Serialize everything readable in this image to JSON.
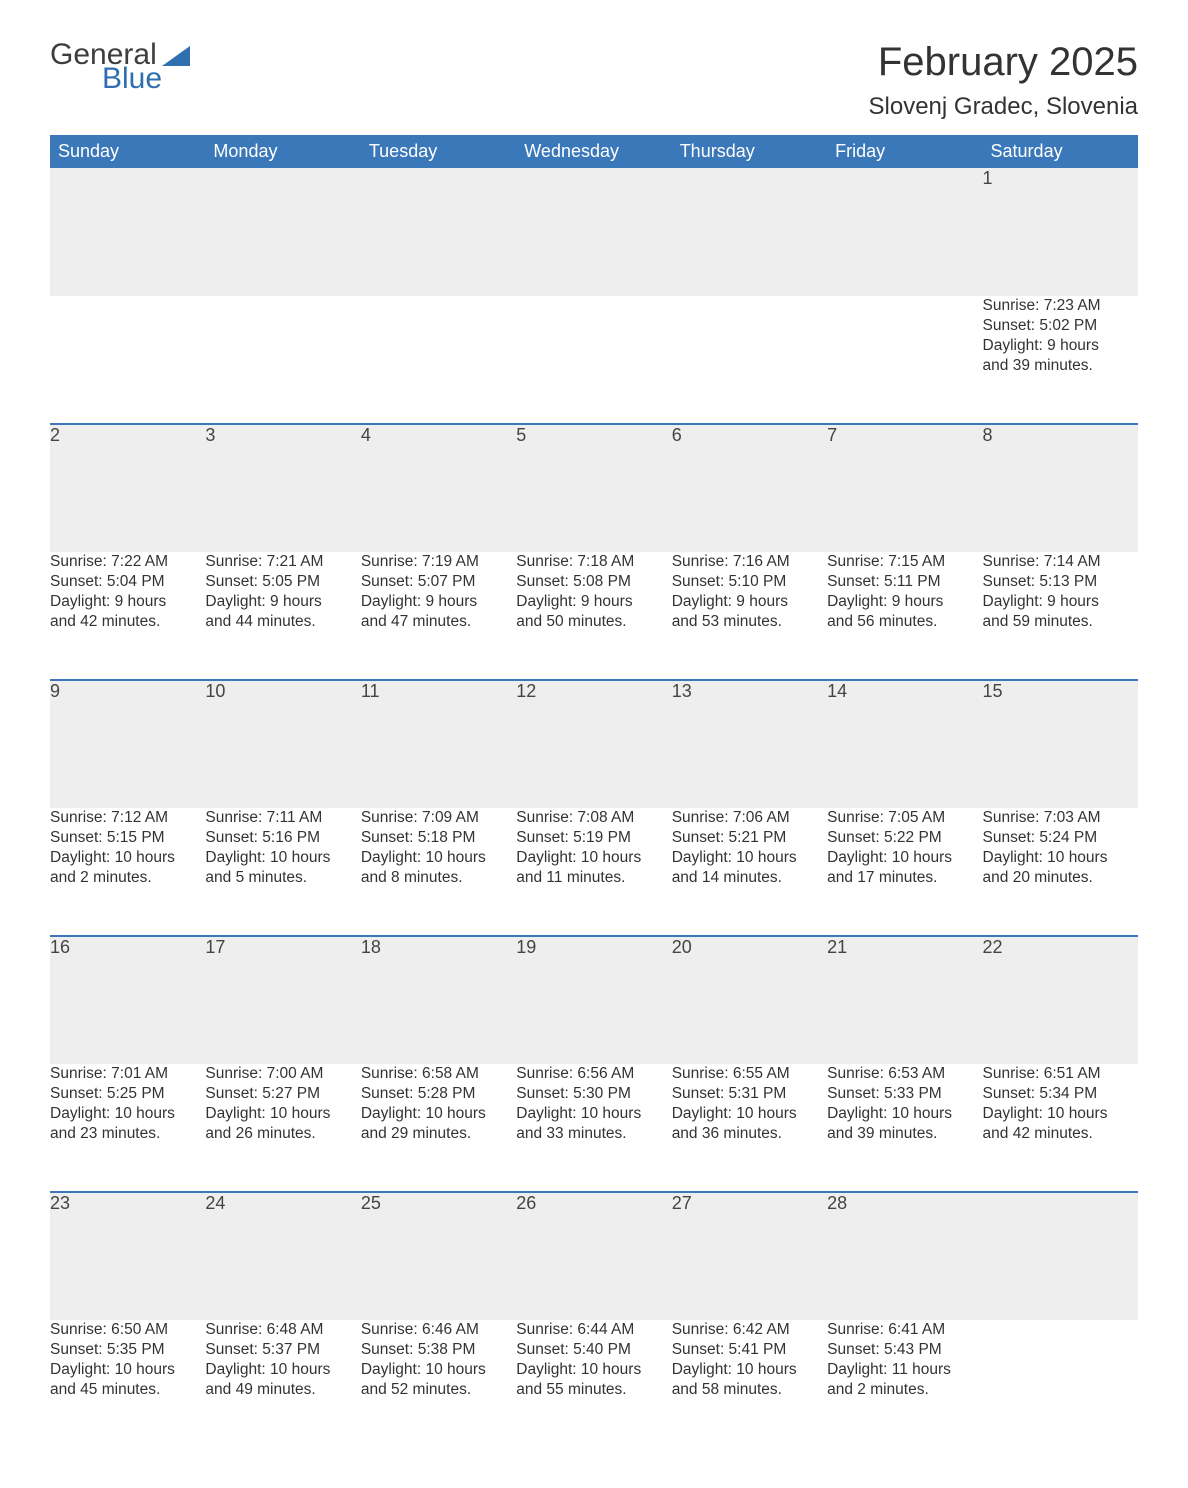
{
  "brand": {
    "word1": "General",
    "word2": "Blue",
    "text_color": "#3d3d3d",
    "accent_color": "#2f6fb0"
  },
  "title": "February 2025",
  "location": "Slovenj Gradec, Slovenia",
  "colors": {
    "header_bg": "#3a78b9",
    "header_text": "#ffffff",
    "daynum_bg": "#eeeeee",
    "row_rule": "#3a78b9",
    "body_text": "#333333",
    "page_bg": "#ffffff"
  },
  "fonts": {
    "title_size": 40,
    "location_size": 24,
    "header_size": 18,
    "daynum_size": 18,
    "body_size": 15.5
  },
  "weekdays": [
    "Sunday",
    "Monday",
    "Tuesday",
    "Wednesday",
    "Thursday",
    "Friday",
    "Saturday"
  ],
  "rows": [
    [
      null,
      null,
      null,
      null,
      null,
      null,
      {
        "n": "1",
        "sunrise": "Sunrise: 7:23 AM",
        "sunset": "Sunset: 5:02 PM",
        "dayl1": "Daylight: 9 hours",
        "dayl2": "and 39 minutes."
      }
    ],
    [
      {
        "n": "2",
        "sunrise": "Sunrise: 7:22 AM",
        "sunset": "Sunset: 5:04 PM",
        "dayl1": "Daylight: 9 hours",
        "dayl2": "and 42 minutes."
      },
      {
        "n": "3",
        "sunrise": "Sunrise: 7:21 AM",
        "sunset": "Sunset: 5:05 PM",
        "dayl1": "Daylight: 9 hours",
        "dayl2": "and 44 minutes."
      },
      {
        "n": "4",
        "sunrise": "Sunrise: 7:19 AM",
        "sunset": "Sunset: 5:07 PM",
        "dayl1": "Daylight: 9 hours",
        "dayl2": "and 47 minutes."
      },
      {
        "n": "5",
        "sunrise": "Sunrise: 7:18 AM",
        "sunset": "Sunset: 5:08 PM",
        "dayl1": "Daylight: 9 hours",
        "dayl2": "and 50 minutes."
      },
      {
        "n": "6",
        "sunrise": "Sunrise: 7:16 AM",
        "sunset": "Sunset: 5:10 PM",
        "dayl1": "Daylight: 9 hours",
        "dayl2": "and 53 minutes."
      },
      {
        "n": "7",
        "sunrise": "Sunrise: 7:15 AM",
        "sunset": "Sunset: 5:11 PM",
        "dayl1": "Daylight: 9 hours",
        "dayl2": "and 56 minutes."
      },
      {
        "n": "8",
        "sunrise": "Sunrise: 7:14 AM",
        "sunset": "Sunset: 5:13 PM",
        "dayl1": "Daylight: 9 hours",
        "dayl2": "and 59 minutes."
      }
    ],
    [
      {
        "n": "9",
        "sunrise": "Sunrise: 7:12 AM",
        "sunset": "Sunset: 5:15 PM",
        "dayl1": "Daylight: 10 hours",
        "dayl2": "and 2 minutes."
      },
      {
        "n": "10",
        "sunrise": "Sunrise: 7:11 AM",
        "sunset": "Sunset: 5:16 PM",
        "dayl1": "Daylight: 10 hours",
        "dayl2": "and 5 minutes."
      },
      {
        "n": "11",
        "sunrise": "Sunrise: 7:09 AM",
        "sunset": "Sunset: 5:18 PM",
        "dayl1": "Daylight: 10 hours",
        "dayl2": "and 8 minutes."
      },
      {
        "n": "12",
        "sunrise": "Sunrise: 7:08 AM",
        "sunset": "Sunset: 5:19 PM",
        "dayl1": "Daylight: 10 hours",
        "dayl2": "and 11 minutes."
      },
      {
        "n": "13",
        "sunrise": "Sunrise: 7:06 AM",
        "sunset": "Sunset: 5:21 PM",
        "dayl1": "Daylight: 10 hours",
        "dayl2": "and 14 minutes."
      },
      {
        "n": "14",
        "sunrise": "Sunrise: 7:05 AM",
        "sunset": "Sunset: 5:22 PM",
        "dayl1": "Daylight: 10 hours",
        "dayl2": "and 17 minutes."
      },
      {
        "n": "15",
        "sunrise": "Sunrise: 7:03 AM",
        "sunset": "Sunset: 5:24 PM",
        "dayl1": "Daylight: 10 hours",
        "dayl2": "and 20 minutes."
      }
    ],
    [
      {
        "n": "16",
        "sunrise": "Sunrise: 7:01 AM",
        "sunset": "Sunset: 5:25 PM",
        "dayl1": "Daylight: 10 hours",
        "dayl2": "and 23 minutes."
      },
      {
        "n": "17",
        "sunrise": "Sunrise: 7:00 AM",
        "sunset": "Sunset: 5:27 PM",
        "dayl1": "Daylight: 10 hours",
        "dayl2": "and 26 minutes."
      },
      {
        "n": "18",
        "sunrise": "Sunrise: 6:58 AM",
        "sunset": "Sunset: 5:28 PM",
        "dayl1": "Daylight: 10 hours",
        "dayl2": "and 29 minutes."
      },
      {
        "n": "19",
        "sunrise": "Sunrise: 6:56 AM",
        "sunset": "Sunset: 5:30 PM",
        "dayl1": "Daylight: 10 hours",
        "dayl2": "and 33 minutes."
      },
      {
        "n": "20",
        "sunrise": "Sunrise: 6:55 AM",
        "sunset": "Sunset: 5:31 PM",
        "dayl1": "Daylight: 10 hours",
        "dayl2": "and 36 minutes."
      },
      {
        "n": "21",
        "sunrise": "Sunrise: 6:53 AM",
        "sunset": "Sunset: 5:33 PM",
        "dayl1": "Daylight: 10 hours",
        "dayl2": "and 39 minutes."
      },
      {
        "n": "22",
        "sunrise": "Sunrise: 6:51 AM",
        "sunset": "Sunset: 5:34 PM",
        "dayl1": "Daylight: 10 hours",
        "dayl2": "and 42 minutes."
      }
    ],
    [
      {
        "n": "23",
        "sunrise": "Sunrise: 6:50 AM",
        "sunset": "Sunset: 5:35 PM",
        "dayl1": "Daylight: 10 hours",
        "dayl2": "and 45 minutes."
      },
      {
        "n": "24",
        "sunrise": "Sunrise: 6:48 AM",
        "sunset": "Sunset: 5:37 PM",
        "dayl1": "Daylight: 10 hours",
        "dayl2": "and 49 minutes."
      },
      {
        "n": "25",
        "sunrise": "Sunrise: 6:46 AM",
        "sunset": "Sunset: 5:38 PM",
        "dayl1": "Daylight: 10 hours",
        "dayl2": "and 52 minutes."
      },
      {
        "n": "26",
        "sunrise": "Sunrise: 6:44 AM",
        "sunset": "Sunset: 5:40 PM",
        "dayl1": "Daylight: 10 hours",
        "dayl2": "and 55 minutes."
      },
      {
        "n": "27",
        "sunrise": "Sunrise: 6:42 AM",
        "sunset": "Sunset: 5:41 PM",
        "dayl1": "Daylight: 10 hours",
        "dayl2": "and 58 minutes."
      },
      {
        "n": "28",
        "sunrise": "Sunrise: 6:41 AM",
        "sunset": "Sunset: 5:43 PM",
        "dayl1": "Daylight: 11 hours",
        "dayl2": "and 2 minutes."
      },
      null
    ]
  ]
}
